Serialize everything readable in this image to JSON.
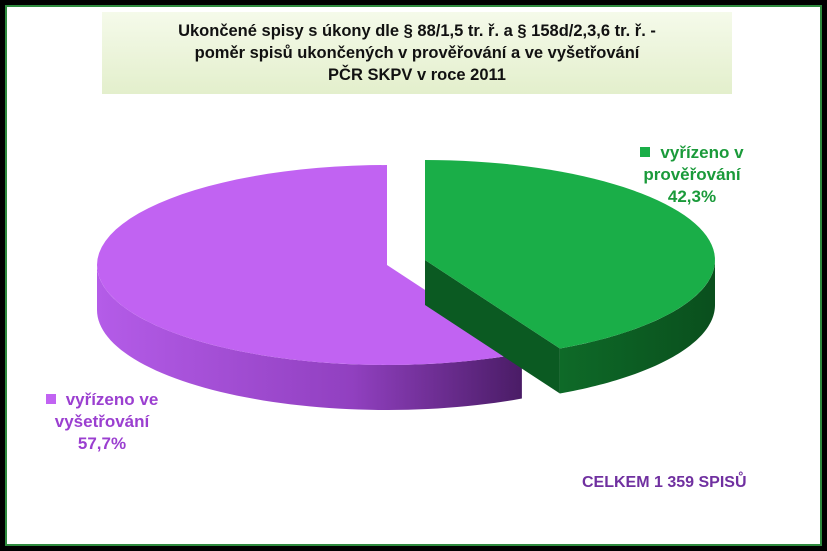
{
  "chart_data": {
    "type": "pie",
    "title": [
      "Ukončené spisy s úkony dle § 88/1,5 tr. ř. a § 158d/2,3,6 tr. ř. -",
      "poměr spisů ukončených v prověřování a ve vyšetřování",
      "PČR SKPV v roce 2011"
    ],
    "categories": [
      "vyřízeno v prověřování",
      "vyřízeno ve vyšetřování"
    ],
    "values": [
      42.3,
      57.7
    ],
    "value_labels": [
      "42,3%",
      "57,7%"
    ],
    "colors": [
      "#1aae48",
      "#c163f2"
    ],
    "label_colors": [
      "#1a9a3a",
      "#9b3fd0"
    ],
    "annotation": "CELKEM 1 359 SPISŮ"
  }
}
